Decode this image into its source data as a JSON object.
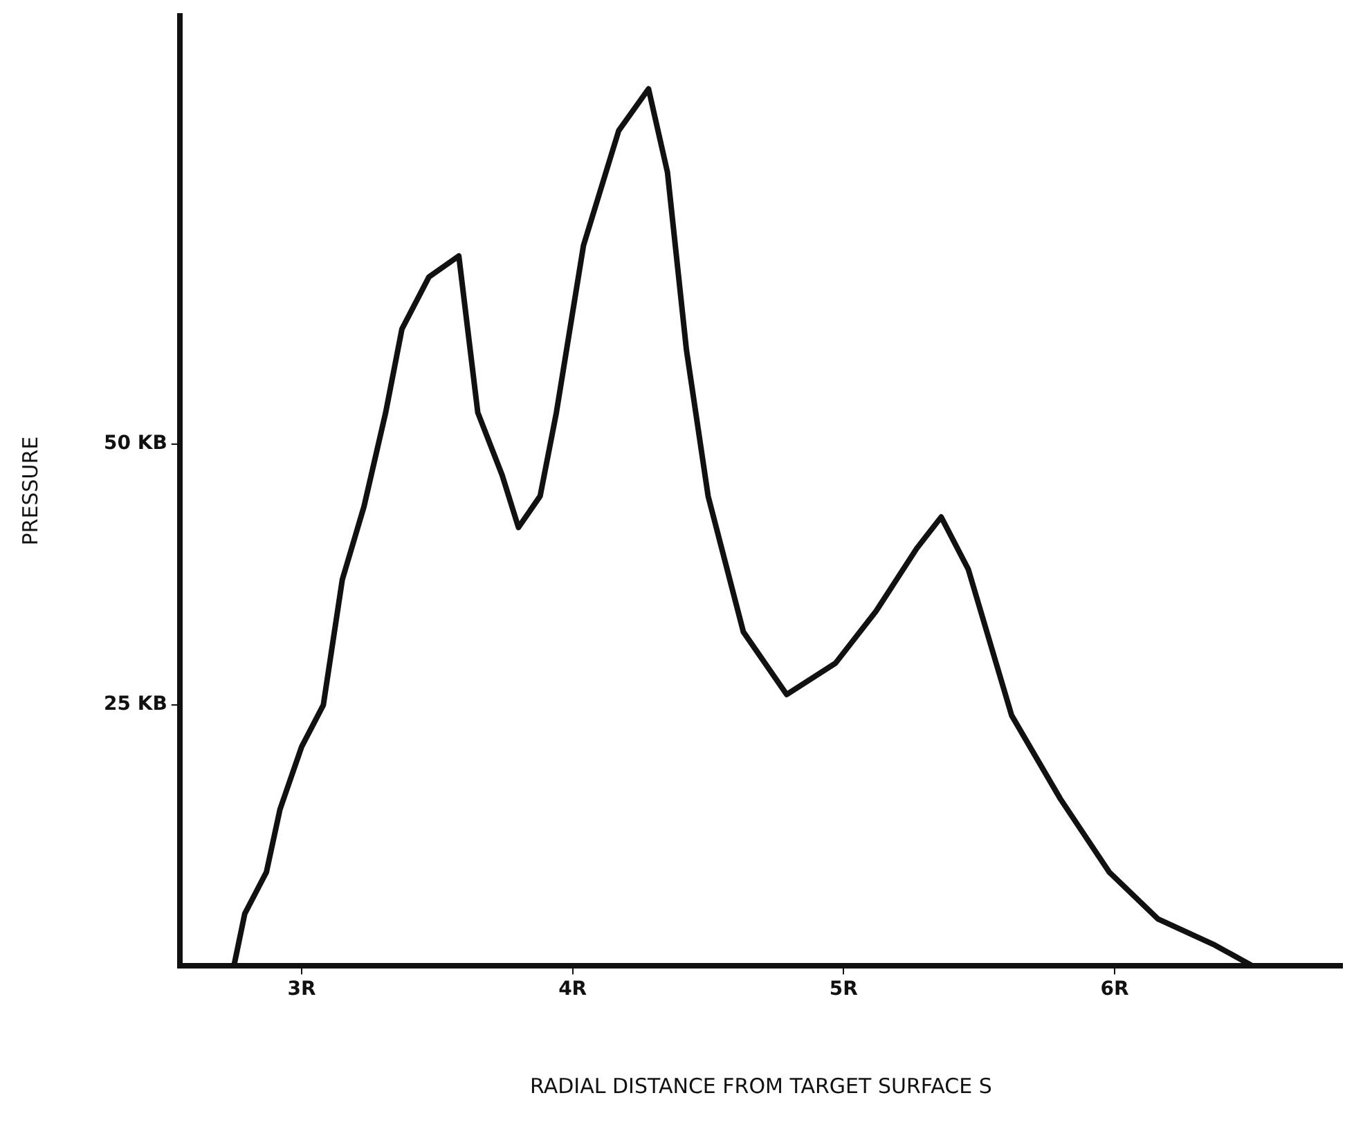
{
  "chart_data": {
    "type": "line",
    "xlabel": "RADIAL DISTANCE FROM TARGET SURFACE S",
    "ylabel": "PRESSURE",
    "x": [
      2.75,
      2.79,
      2.87,
      2.92,
      3.0,
      3.08,
      3.15,
      3.23,
      3.31,
      3.37,
      3.47,
      3.58,
      3.65,
      3.74,
      3.8,
      3.88,
      3.94,
      4.04,
      4.17,
      4.28,
      4.35,
      4.42,
      4.5,
      4.63,
      4.79,
      4.97,
      5.12,
      5.27,
      5.36,
      5.46,
      5.62,
      5.8,
      5.98,
      6.16,
      6.37,
      6.51
    ],
    "series": [
      {
        "color": "#111111",
        "values": [
          0,
          5,
          9,
          15,
          21,
          25,
          37,
          44,
          53,
          61,
          66,
          68,
          53,
          47,
          42,
          45,
          53,
          69,
          80,
          84,
          76,
          59,
          45,
          32,
          26,
          29,
          34,
          40,
          43,
          38,
          24,
          16,
          9,
          4.5,
          2,
          0
        ]
      }
    ],
    "xlim": [
      2.55,
      6.84
    ],
    "ylim": [
      0,
      91
    ],
    "xticks": [
      {
        "value": 3,
        "label": "3R"
      },
      {
        "value": 4,
        "label": "4R"
      },
      {
        "value": 5,
        "label": "5R"
      },
      {
        "value": 6,
        "label": "6R"
      }
    ],
    "yticks": [
      {
        "value": 25,
        "label": "25 KB"
      },
      {
        "value": 50,
        "label": "50 KB"
      }
    ],
    "grid": false,
    "marker": "none"
  }
}
